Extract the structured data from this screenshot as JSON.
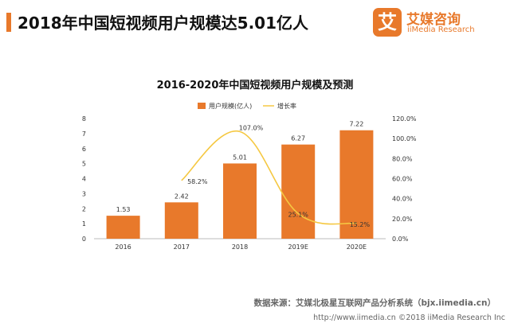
{
  "header": {
    "title": "2018年中国短视频用户规模达5.01亿人",
    "logo_mark": "艾",
    "logo_cn": "艾媒咨询",
    "logo_en": "iiMedia Research"
  },
  "chart_data": {
    "type": "bar",
    "title": "2016-2020年中国短视频用户规模及预测",
    "categories": [
      "2016",
      "2017",
      "2018",
      "2019E",
      "2020E"
    ],
    "series": [
      {
        "name": "用户规模(亿人)",
        "type": "bar",
        "axis": "left",
        "color": "#e8792b",
        "values": [
          1.53,
          2.42,
          5.01,
          6.27,
          7.22
        ],
        "labels": [
          "1.53",
          "2.42",
          "5.01",
          "6.27",
          "7.22"
        ]
      },
      {
        "name": "增长率",
        "type": "line",
        "axis": "right",
        "color": "#f5c842",
        "values": [
          null,
          58.2,
          107.0,
          25.1,
          15.2
        ],
        "labels": [
          "",
          "58.2%",
          "107.0%",
          "25.1%",
          "15.2%"
        ]
      }
    ],
    "y_left": {
      "min": 0,
      "max": 8,
      "ticks": [
        "0",
        "1",
        "2",
        "3",
        "4",
        "5",
        "6",
        "7",
        "8"
      ]
    },
    "y_right": {
      "min": 0,
      "max": 120,
      "ticks": [
        "0.0%",
        "20.0%",
        "40.0%",
        "60.0%",
        "80.0%",
        "100.0%",
        "120.0%"
      ]
    },
    "legend_position": "top",
    "grid": false
  },
  "footer": {
    "source": "数据来源：艾媒北极星互联网产品分析系统（bjx.iimedia.cn）",
    "copyright": "http://www.iimedia.cn   ©2018  iiMedia Research  Inc"
  }
}
